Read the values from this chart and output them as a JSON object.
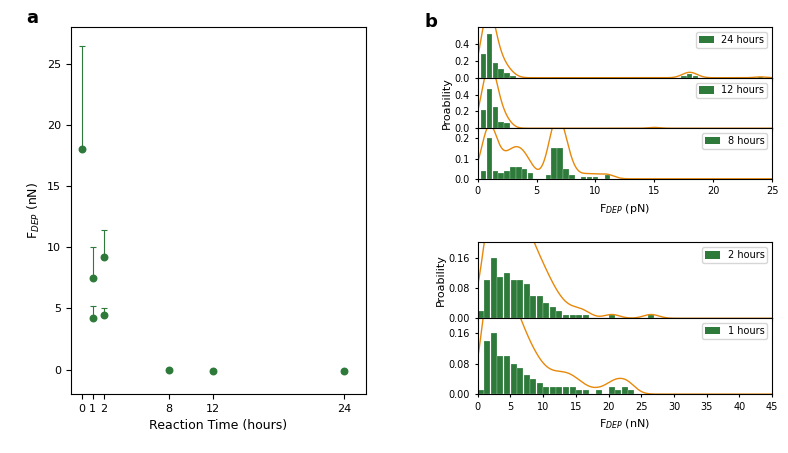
{
  "panel_a": {
    "x_values": [
      0,
      1,
      1,
      2,
      2,
      8,
      12,
      24
    ],
    "y_values": [
      18.0,
      7.5,
      4.2,
      9.2,
      4.5,
      0.0,
      -0.1,
      -0.1
    ],
    "yerr_upper": [
      8.5,
      2.5,
      1.0,
      2.2,
      0.5,
      0,
      0,
      0
    ],
    "xlabel": "Reaction Time (hours)",
    "ylabel": "F$_{DEP}$ (nN)",
    "xlim": [
      -1,
      26
    ],
    "ylim": [
      -2,
      28
    ],
    "yticks": [
      0,
      5,
      10,
      15,
      20,
      25
    ],
    "xticks": [
      0,
      1,
      2,
      8,
      12,
      24
    ],
    "color": "#2d7a3a",
    "marker": "o",
    "markersize": 5
  },
  "panel_b_top": {
    "xlabel": "F$_{DEP}$ (pN)",
    "ylabel": "Proability",
    "xlim": [
      0,
      25
    ],
    "xticks": [
      0,
      5,
      10,
      15,
      20,
      25
    ],
    "ylim_24": [
      0.0,
      0.6
    ],
    "yticks_24": [
      0.0,
      0.2,
      0.4
    ],
    "ylim_12": [
      0.0,
      0.6
    ],
    "yticks_12": [
      0.0,
      0.2,
      0.4
    ],
    "ylim_8": [
      0.0,
      0.25
    ],
    "yticks_8": [
      0.0,
      0.1,
      0.2
    ],
    "bar_color": "#2d7a3a",
    "curve_color": "#e8880a",
    "24h_bins": [
      0.5,
      1.0,
      1.5,
      2.0,
      2.5,
      3.0,
      3.5,
      4.0,
      4.5,
      5.0,
      5.5,
      6.0,
      6.5,
      7.0,
      7.5,
      8.0,
      8.5,
      9.0,
      9.5,
      10.0,
      10.5,
      11.0,
      11.5,
      12.0,
      12.5,
      13.0,
      13.5,
      14.0,
      14.5,
      15.0,
      15.5,
      16.0,
      16.5,
      17.0,
      17.5,
      18.0,
      18.5,
      19.0,
      19.5,
      20.0,
      20.5,
      21.0,
      21.5,
      22.0,
      22.5,
      23.0,
      23.5,
      24.0,
      24.5
    ],
    "24h_vals": [
      0.28,
      0.52,
      0.18,
      0.1,
      0.06,
      0.02,
      0.0,
      0.0,
      0.0,
      0.0,
      0.0,
      0.0,
      0.0,
      0.0,
      0.0,
      0.0,
      0.0,
      0.0,
      0.0,
      0.0,
      0.0,
      0.0,
      0.0,
      0.0,
      0.0,
      0.0,
      0.0,
      0.0,
      0.0,
      0.0,
      0.0,
      0.0,
      0.0,
      0.0,
      0.02,
      0.04,
      0.02,
      0.0,
      0.0,
      0.0,
      0.0,
      0.0,
      0.0,
      0.0,
      0.0,
      0.0,
      0.0,
      0.01,
      0.0
    ],
    "12h_bins": [
      0.5,
      1.0,
      1.5,
      2.0,
      2.5,
      3.0,
      3.5,
      4.0,
      4.5,
      5.0,
      5.5,
      6.0,
      6.5,
      7.0,
      7.5,
      8.0,
      8.5,
      9.0,
      9.5,
      10.0,
      10.5,
      11.0,
      11.5,
      12.0,
      12.5,
      13.0,
      13.5,
      14.0,
      14.5,
      15.0,
      15.5,
      16.0,
      16.5,
      17.0,
      17.5,
      18.0,
      18.5,
      19.0,
      19.5,
      20.0,
      20.5,
      21.0,
      21.5,
      22.0,
      22.5,
      23.0,
      23.5,
      24.0,
      24.5
    ],
    "12h_vals": [
      0.22,
      0.47,
      0.25,
      0.08,
      0.06,
      0.0,
      0.0,
      0.0,
      0.0,
      0.0,
      0.0,
      0.0,
      0.0,
      0.0,
      0.0,
      0.0,
      0.0,
      0.0,
      0.0,
      0.0,
      0.0,
      0.0,
      0.0,
      0.0,
      0.0,
      0.0,
      0.0,
      0.0,
      0.0,
      0.01,
      0.0,
      0.0,
      0.0,
      0.0,
      0.0,
      0.0,
      0.0,
      0.0,
      0.0,
      0.0,
      0.0,
      0.0,
      0.0,
      0.0,
      0.0,
      0.0,
      0.0,
      0.0,
      0.0
    ],
    "8h_bins": [
      0.5,
      1.0,
      1.5,
      2.0,
      2.5,
      3.0,
      3.5,
      4.0,
      4.5,
      5.0,
      5.5,
      6.0,
      6.5,
      7.0,
      7.5,
      8.0,
      8.5,
      9.0,
      9.5,
      10.0,
      10.5,
      11.0,
      11.5,
      12.0,
      12.5,
      13.0,
      13.5,
      14.0,
      14.5,
      15.0,
      15.5,
      16.0,
      16.5,
      17.0,
      17.5,
      18.0,
      18.5,
      19.0,
      19.5,
      20.0,
      20.5,
      21.0,
      21.5,
      22.0,
      22.5,
      23.0,
      23.5,
      24.0,
      24.5
    ],
    "8h_vals": [
      0.04,
      0.2,
      0.04,
      0.03,
      0.04,
      0.06,
      0.06,
      0.05,
      0.03,
      0.0,
      0.0,
      0.02,
      0.15,
      0.15,
      0.05,
      0.02,
      0.0,
      0.01,
      0.01,
      0.01,
      0.0,
      0.02,
      0.0,
      0.0,
      0.0,
      0.0,
      0.0,
      0.0,
      0.0,
      0.0,
      0.0,
      0.0,
      0.0,
      0.0,
      0.0,
      0.0,
      0.0,
      0.0,
      0.0,
      0.0,
      0.0,
      0.0,
      0.0,
      0.0,
      0.0,
      0.0,
      0.0,
      0.0,
      0.0
    ]
  },
  "panel_b_bottom": {
    "xlabel": "F$_{DEP}$ (nN)",
    "ylabel": "Proability",
    "xlim": [
      0,
      45
    ],
    "xticks": [
      0,
      10,
      20,
      30,
      40
    ],
    "ylim_2": [
      0.0,
      0.2
    ],
    "yticks_2": [
      0.0,
      0.08,
      0.16
    ],
    "ylim_1": [
      0.0,
      0.2
    ],
    "yticks_1": [
      0.0,
      0.08,
      0.16
    ],
    "bar_color": "#2d7a3a",
    "curve_color": "#e8880a",
    "2h_bins": [
      0.5,
      1.5,
      2.5,
      3.5,
      4.5,
      5.5,
      6.5,
      7.5,
      8.5,
      9.5,
      10.5,
      11.5,
      12.5,
      13.5,
      14.5,
      15.5,
      16.5,
      17.5,
      18.5,
      19.5,
      20.5,
      21.5,
      22.5,
      23.5,
      24.5,
      25.5,
      26.5,
      27.5,
      28.5,
      29.5,
      30.5,
      31.5,
      32.5,
      33.5,
      34.5,
      35.5,
      36.5,
      37.5,
      38.5,
      39.5,
      40.5,
      41.5,
      42.5,
      43.5,
      44.5
    ],
    "2h_vals": [
      0.02,
      0.1,
      0.16,
      0.11,
      0.12,
      0.1,
      0.1,
      0.09,
      0.06,
      0.06,
      0.04,
      0.03,
      0.02,
      0.01,
      0.01,
      0.01,
      0.01,
      0.0,
      0.0,
      0.0,
      0.01,
      0.0,
      0.0,
      0.0,
      0.0,
      0.0,
      0.01,
      0.0,
      0.0,
      0.0,
      0.0,
      0.0,
      0.0,
      0.0,
      0.0,
      0.0,
      0.0,
      0.0,
      0.0,
      0.0,
      0.0,
      0.0,
      0.0,
      0.0,
      0.0
    ],
    "1h_bins": [
      0.5,
      1.5,
      2.5,
      3.5,
      4.5,
      5.5,
      6.5,
      7.5,
      8.5,
      9.5,
      10.5,
      11.5,
      12.5,
      13.5,
      14.5,
      15.5,
      16.5,
      17.5,
      18.5,
      19.5,
      20.5,
      21.5,
      22.5,
      23.5,
      24.5,
      25.5,
      26.5,
      27.5,
      28.5,
      29.5,
      30.5,
      31.5,
      32.5,
      33.5,
      34.5,
      35.5,
      36.5,
      37.5,
      38.5,
      39.5,
      40.5,
      41.5,
      42.5,
      43.5,
      44.5
    ],
    "1h_vals": [
      0.01,
      0.14,
      0.16,
      0.1,
      0.1,
      0.08,
      0.07,
      0.05,
      0.04,
      0.03,
      0.02,
      0.02,
      0.02,
      0.02,
      0.02,
      0.01,
      0.01,
      0.0,
      0.01,
      0.0,
      0.02,
      0.01,
      0.02,
      0.01,
      0.0,
      0.0,
      0.0,
      0.0,
      0.0,
      0.0,
      0.0,
      0.0,
      0.0,
      0.0,
      0.0,
      0.0,
      0.0,
      0.0,
      0.0,
      0.0,
      0.0,
      0.0,
      0.0,
      0.0,
      0.0
    ]
  },
  "bg_color": "#ffffff"
}
